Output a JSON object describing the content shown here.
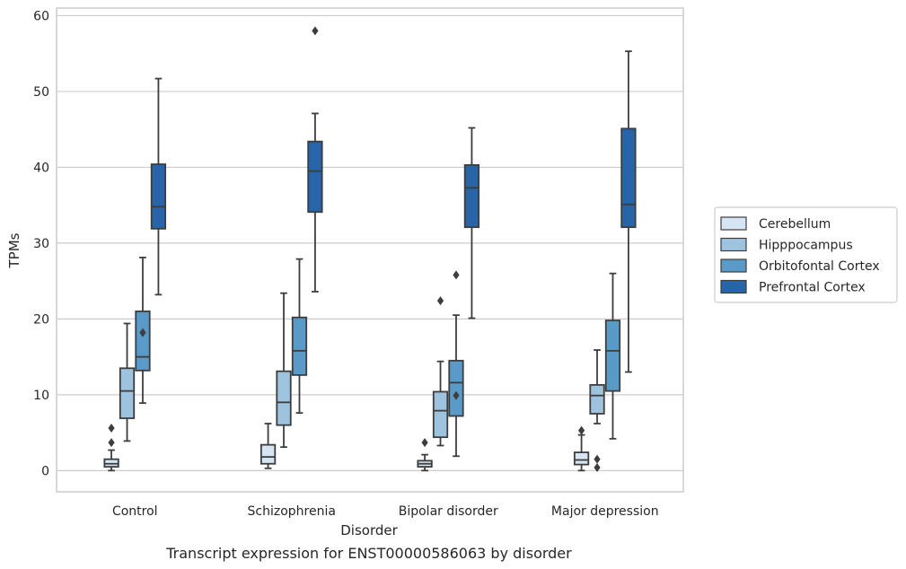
{
  "caption": "Transcript expression for ENST00000586063 by disorder",
  "chart_data": {
    "type": "box",
    "xlabel": "Disorder",
    "ylabel": "TPMs",
    "ylim": [
      -2.8,
      61
    ],
    "yticks": [
      0,
      10,
      20,
      30,
      40,
      50,
      60
    ],
    "grid": "horizontal",
    "legend_position": "right",
    "categories": [
      "Control",
      "Schizophrenia",
      "Bipolar disorder",
      "Major depression"
    ],
    "series": [
      {
        "name": "Cerebellum",
        "color": "#d6e5f3",
        "boxes": [
          {
            "whislo": 0.0,
            "q1": 0.5,
            "med": 0.9,
            "q3": 1.5,
            "whishi": 2.7,
            "fliers": [
              3.7,
              5.6
            ]
          },
          {
            "whislo": 0.3,
            "q1": 0.9,
            "med": 1.8,
            "q3": 3.4,
            "whishi": 6.2,
            "fliers": []
          },
          {
            "whislo": 0.0,
            "q1": 0.5,
            "med": 0.9,
            "q3": 1.3,
            "whishi": 2.1,
            "fliers": [
              3.7
            ]
          },
          {
            "whislo": 0.0,
            "q1": 0.8,
            "med": 1.4,
            "q3": 2.4,
            "whishi": 4.7,
            "fliers": [
              5.3
            ]
          }
        ]
      },
      {
        "name": "Hipppocampus",
        "color": "#9dc3df",
        "boxes": [
          {
            "whislo": 3.9,
            "q1": 6.9,
            "med": 10.5,
            "q3": 13.5,
            "whishi": 19.4,
            "fliers": []
          },
          {
            "whislo": 3.1,
            "q1": 6.0,
            "med": 9.0,
            "q3": 13.1,
            "whishi": 23.4,
            "fliers": []
          },
          {
            "whislo": 3.3,
            "q1": 4.4,
            "med": 7.9,
            "q3": 10.4,
            "whishi": 14.4,
            "fliers": [
              22.4
            ]
          },
          {
            "whislo": 6.2,
            "q1": 7.5,
            "med": 9.9,
            "q3": 11.3,
            "whishi": 15.9,
            "fliers": [
              0.4,
              1.5
            ]
          }
        ]
      },
      {
        "name": "Orbitofontal Cortex",
        "color": "#5a9ac9",
        "boxes": [
          {
            "whislo": 8.9,
            "q1": 13.2,
            "med": 15.0,
            "q3": 21.0,
            "whishi": 28.1,
            "fliers": [
              18.2
            ]
          },
          {
            "whislo": 7.6,
            "q1": 12.6,
            "med": 15.8,
            "q3": 20.2,
            "whishi": 27.9,
            "fliers": []
          },
          {
            "whislo": 1.9,
            "q1": 7.2,
            "med": 11.6,
            "q3": 14.5,
            "whishi": 20.5,
            "fliers": [
              9.9,
              25.8
            ]
          },
          {
            "whislo": 4.2,
            "q1": 10.5,
            "med": 15.8,
            "q3": 19.8,
            "whishi": 26.0,
            "fliers": []
          }
        ]
      },
      {
        "name": "Prefrontal Cortex",
        "color": "#2765a8",
        "boxes": [
          {
            "whislo": 23.2,
            "q1": 31.9,
            "med": 34.8,
            "q3": 40.4,
            "whishi": 51.7,
            "fliers": []
          },
          {
            "whislo": 23.6,
            "q1": 34.1,
            "med": 39.5,
            "q3": 43.4,
            "whishi": 47.1,
            "fliers": [
              58.0
            ]
          },
          {
            "whislo": 20.1,
            "q1": 32.1,
            "med": 37.3,
            "q3": 40.3,
            "whishi": 45.2,
            "fliers": []
          },
          {
            "whislo": 13.0,
            "q1": 32.1,
            "med": 35.1,
            "q3": 45.1,
            "whishi": 55.3,
            "fliers": []
          }
        ]
      }
    ]
  }
}
